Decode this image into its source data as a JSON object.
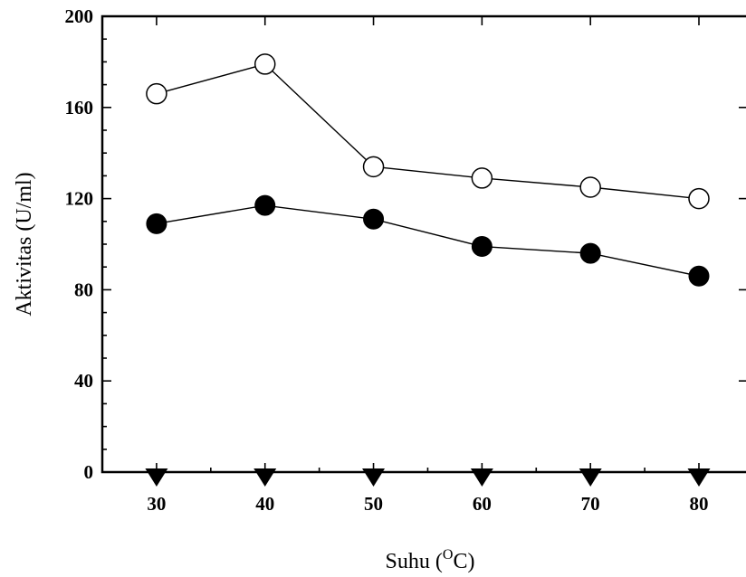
{
  "chart_data": {
    "type": "line",
    "title": "",
    "xlabel": "Suhu (",
    "xlabel_sup": "O",
    "xlabel_end": "C)",
    "ylabel": "Aktivitas (U/ml)",
    "x": [
      30,
      40,
      50,
      60,
      70,
      80
    ],
    "xlim": [
      25,
      80
    ],
    "ylim": [
      0,
      200
    ],
    "yticks": [
      0,
      40,
      80,
      120,
      160,
      200
    ],
    "grid": false,
    "series": [
      {
        "marker": "open-circle",
        "values": [
          166,
          179,
          134,
          129,
          125,
          120
        ]
      },
      {
        "marker": "filled-circle",
        "values": [
          109,
          117,
          111,
          99,
          96,
          86
        ]
      },
      {
        "marker": "filled-triangle-down",
        "values": [
          0,
          0,
          0,
          0,
          0,
          0
        ]
      }
    ]
  }
}
